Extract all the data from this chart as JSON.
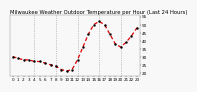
{
  "title": "Milwaukee Weather Outdoor Temperature per Hour (Last 24 Hours)",
  "hours": [
    0,
    1,
    2,
    3,
    4,
    5,
    6,
    7,
    8,
    9,
    10,
    11,
    12,
    13,
    14,
    15,
    16,
    17,
    18,
    19,
    20,
    21,
    22,
    23
  ],
  "temps": [
    30,
    29,
    28,
    28,
    27,
    27,
    26,
    25,
    24,
    22,
    21,
    22,
    28,
    36,
    44,
    50,
    52,
    50,
    44,
    38,
    36,
    39,
    43,
    48
  ],
  "line_color": "#dd0000",
  "marker_color": "#000000",
  "bg_color": "#f8f8f8",
  "grid_color": "#999999",
  "title_color": "#000000",
  "ylim": [
    18,
    56
  ],
  "xlim": [
    -0.5,
    23.5
  ],
  "ytick_values": [
    20,
    25,
    30,
    35,
    40,
    45,
    50,
    55
  ],
  "ytick_labels": [
    "20",
    "25",
    "30",
    "35",
    "40",
    "45",
    "50",
    "55"
  ],
  "xtick_step": 1,
  "vgrid_positions": [
    4,
    8,
    12,
    16,
    20
  ],
  "title_fontsize": 3.8,
  "tick_fontsize": 3.0,
  "line_width": 0.9,
  "marker_size": 1.5
}
